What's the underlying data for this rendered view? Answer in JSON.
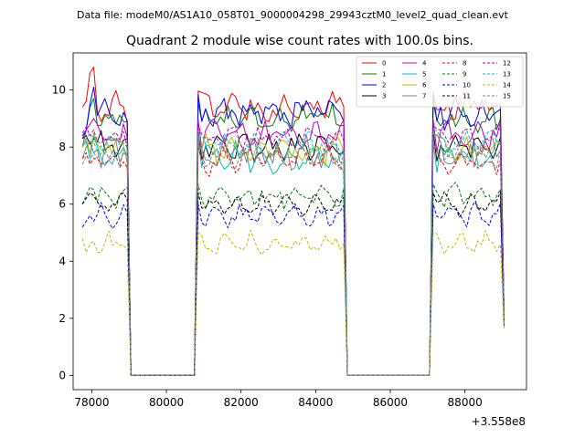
{
  "chart_data": {
    "type": "line",
    "suptitle": "Data file: modeM0/AS1A10_058T01_9000004298_29943cztM0_level2_quad_clean.evt",
    "title": "Quadrant 2 module wise count rates with 100.0s bins.",
    "x_offset_label": "+3.558e8",
    "xlim": [
      77500,
      89650
    ],
    "ylim": [
      -0.5,
      11.3
    ],
    "x_ticks": [
      78000,
      80000,
      82000,
      84000,
      86000,
      88000
    ],
    "y_ticks": [
      0,
      2,
      4,
      6,
      8,
      10
    ],
    "x_tick_labels": [
      "78000",
      "80000",
      "82000",
      "84000",
      "86000",
      "88000"
    ],
    "y_tick_labels": [
      "0",
      "2",
      "4",
      "6",
      "8",
      "10"
    ],
    "legend_position": "top-right",
    "bin_width": 100,
    "segments": [
      {
        "start": 77750,
        "end": 78950,
        "n": 13
      },
      {
        "start": 80850,
        "end": 84750,
        "n": 40
      },
      {
        "start": 87150,
        "end": 89050,
        "n": 20
      }
    ],
    "gaps": [
      {
        "after_segment": 0,
        "zero_start": 79050,
        "zero_end": 80750
      },
      {
        "after_segment": 1,
        "zero_start": 84850,
        "zero_end": 87050
      }
    ],
    "series": [
      {
        "name": "0",
        "color": "#ff0000",
        "dash": "solid",
        "base": 9.4,
        "amp": 0.35,
        "first": [
          9.4,
          9.6,
          10.6,
          10.8
        ],
        "end_value": 2.0
      },
      {
        "name": "1",
        "color": "#008000",
        "dash": "solid",
        "base": 9.0,
        "amp": 0.35,
        "first": [
          8.3,
          8.6,
          9.4,
          9.7
        ],
        "end_value": 2.0
      },
      {
        "name": "2",
        "color": "#0000ff",
        "dash": "solid",
        "base": 9.2,
        "amp": 0.4,
        "first": [
          8.4,
          8.6,
          9.5,
          10.1
        ],
        "end_value": 2.1
      },
      {
        "name": "3",
        "color": "#000000",
        "dash": "solid",
        "base": 8.0,
        "amp": 0.35,
        "first": [
          8.3,
          8.4,
          8.1,
          8.3
        ],
        "end_value": 1.9
      },
      {
        "name": "4",
        "color": "#bf00bf",
        "dash": "solid",
        "base": 8.4,
        "amp": 0.35,
        "first": [
          8.0,
          8.6,
          8.8,
          9.0
        ],
        "end_value": 2.0
      },
      {
        "name": "5",
        "color": "#00bfbf",
        "dash": "solid",
        "base": 7.6,
        "amp": 0.4,
        "first": [
          8.0,
          8.2,
          7.6,
          8.4
        ],
        "end_value": 1.9
      },
      {
        "name": "6",
        "color": "#bfbf00",
        "dash": "solid",
        "base": 7.9,
        "amp": 0.35,
        "first": [
          8.0,
          8.3,
          7.8,
          8.5
        ],
        "end_value": 1.9
      },
      {
        "name": "7",
        "color": "#808080",
        "dash": "solid",
        "base": 7.8,
        "amp": 0.4,
        "first": [
          7.6,
          8.0,
          8.2,
          7.8
        ],
        "end_value": 1.8
      },
      {
        "name": "8",
        "color": "#ff0000",
        "dash": "dashed",
        "base": 7.5,
        "amp": 0.3,
        "first": [
          7.6,
          7.8,
          7.4,
          7.6
        ],
        "end_value": 1.8
      },
      {
        "name": "9",
        "color": "#008000",
        "dash": "dashed",
        "base": 6.3,
        "amp": 0.25,
        "first": [
          6.0,
          6.3,
          6.6,
          6.5
        ],
        "end_value": 1.7
      },
      {
        "name": "10",
        "color": "#0000ff",
        "dash": "dashed",
        "base": 5.6,
        "amp": 0.25,
        "first": [
          5.2,
          5.4,
          5.6,
          5.4
        ],
        "end_value": 1.7
      },
      {
        "name": "11",
        "color": "#000000",
        "dash": "dashed",
        "base": 6.0,
        "amp": 0.25,
        "first": [
          6.0,
          6.2,
          6.4,
          6.3
        ],
        "end_value": 1.7
      },
      {
        "name": "12",
        "color": "#bf00bf",
        "dash": "dashed",
        "base": 8.3,
        "amp": 0.3,
        "first": [
          8.5,
          8.7,
          8.4,
          8.6
        ],
        "end_value": 2.0
      },
      {
        "name": "13",
        "color": "#00bfbf",
        "dash": "dashed",
        "base": 8.1,
        "amp": 0.3,
        "first": [
          8.1,
          8.3,
          8.5,
          8.2
        ],
        "end_value": 1.9
      },
      {
        "name": "14",
        "color": "#bfbf00",
        "dash": "dashed",
        "base": 4.6,
        "amp": 0.25,
        "first": [
          4.8,
          4.3,
          4.6,
          4.7
        ],
        "end_value": 1.6
      },
      {
        "name": "15",
        "color": "#808080",
        "dash": "dashed",
        "base": 7.7,
        "amp": 0.3,
        "first": [
          7.4,
          7.7,
          7.5,
          7.8
        ],
        "end_value": 1.8
      }
    ]
  }
}
